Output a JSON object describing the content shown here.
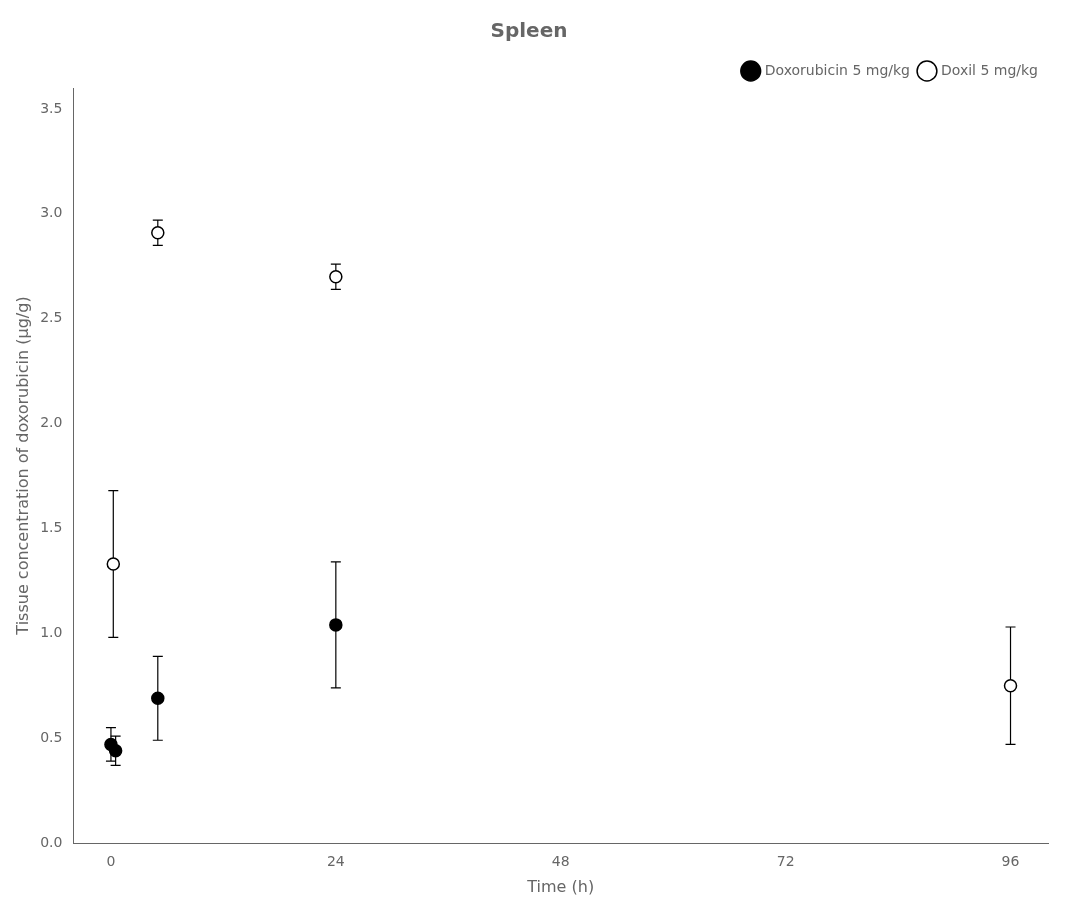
{
  "chart_data": {
    "type": "scatter",
    "title": "Spleen",
    "xlabel": "Time (h)",
    "ylabel": "Tissue concentration of doxorubicin (μg/g)",
    "xlim": [
      -4,
      100
    ],
    "ylim": [
      0,
      3.6
    ],
    "xticks": [
      0,
      24,
      48,
      72,
      96
    ],
    "yticks": [
      {
        "value": 0.0,
        "label": "0.0"
      },
      0.5,
      {
        "value": 1.0,
        "label": "1.0"
      },
      1.5,
      {
        "value": 2.0,
        "label": "2.0"
      },
      2.5,
      {
        "value": 3.0,
        "label": "3.0"
      },
      3.5
    ],
    "grid": false,
    "legend": "upper right",
    "series": [
      {
        "name": "Doxorubicin 5 mg/kg",
        "color": "#000000",
        "marker": "filled_circle",
        "x": [
          0,
          0.5,
          5,
          24
        ],
        "values": [
          0.47,
          0.44,
          0.69,
          1.04
        ],
        "yerr_lower": [
          0.08,
          0.07,
          0.2,
          0.3
        ],
        "yerr_upper": [
          0.08,
          0.07,
          0.2,
          0.3
        ]
      },
      {
        "name": "Doxil 5 mg/kg",
        "color": "#000000",
        "marker": "open_circle",
        "x": [
          0.25,
          5,
          24,
          96
        ],
        "values": [
          1.33,
          2.91,
          2.7,
          0.75
        ],
        "yerr_lower": [
          0.35,
          0.06,
          0.06,
          0.28
        ],
        "yerr_upper": [
          0.35,
          0.06,
          0.06,
          0.28
        ]
      }
    ]
  }
}
